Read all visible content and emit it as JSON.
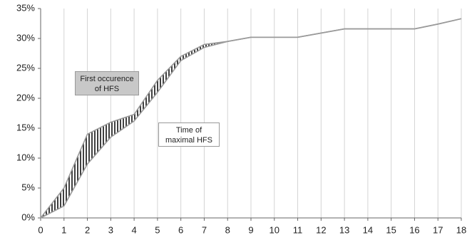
{
  "chart_data": {
    "type": "line",
    "x": [
      0,
      1,
      2,
      3,
      4,
      5,
      6,
      7,
      8,
      9,
      10,
      11,
      12,
      13,
      14,
      15,
      16,
      17,
      18
    ],
    "series": [
      {
        "name": "First occurence of HFS",
        "color": "#999999",
        "values": [
          0,
          5,
          14,
          16,
          17.3,
          23,
          27,
          29,
          29.5,
          30.2,
          30.2,
          30.2,
          30.9,
          31.6,
          31.6,
          31.6,
          31.6,
          32.4,
          33.3
        ]
      },
      {
        "name": "Time of maximal HFS",
        "color": "#999999",
        "values": [
          0,
          2,
          9,
          13.5,
          16.2,
          21,
          26.3,
          28.5,
          29.5,
          30.2,
          30.2,
          30.2,
          30.9,
          31.6,
          31.6,
          31.6,
          31.6,
          32.4,
          33.3
        ]
      }
    ],
    "xlim": [
      0,
      18
    ],
    "xticks": [
      0,
      1,
      2,
      3,
      4,
      5,
      6,
      7,
      8,
      9,
      10,
      11,
      12,
      13,
      14,
      15,
      16,
      17,
      18
    ],
    "ylim": [
      0,
      35
    ],
    "yticks": [
      {
        "value": 0,
        "label": "0%"
      },
      {
        "value": 5,
        "label": "5%"
      },
      {
        "value": 10,
        "label": "10%"
      },
      {
        "value": 15,
        "label": "15%"
      },
      {
        "value": 20,
        "label": "20%"
      },
      {
        "value": 25,
        "label": "25%"
      },
      {
        "value": 30,
        "label": "30%"
      },
      {
        "value": 35,
        "label": "35%"
      }
    ],
    "grid": true,
    "hatch_between": true
  }
}
